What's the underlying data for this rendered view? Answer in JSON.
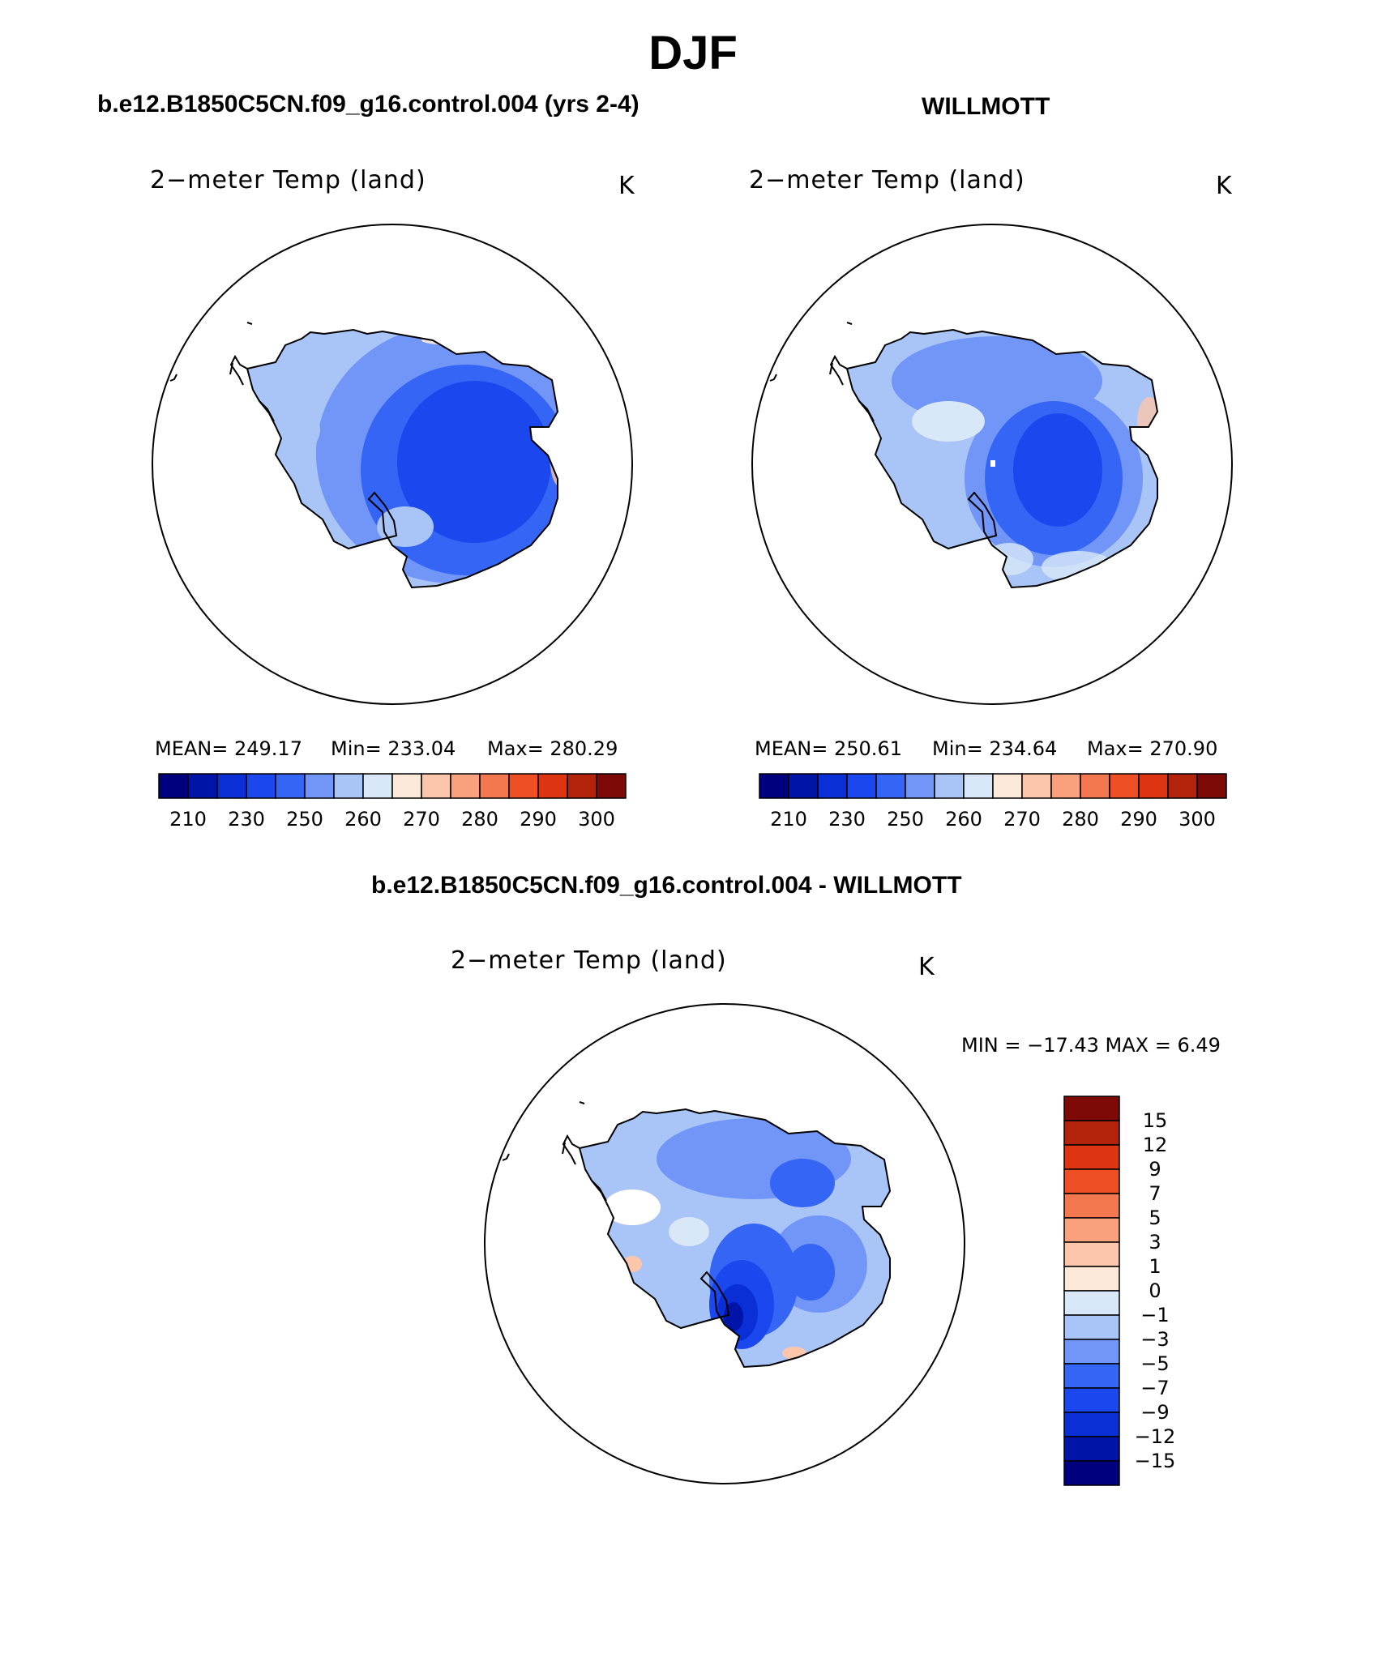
{
  "page_title": "DJF",
  "panels": [
    {
      "id": "model",
      "case_title": "b.e12.B1850C5CN.f09_g16.control.004 (yrs 2-4)",
      "variable_label": "2−meter Temp (land)",
      "units": "K",
      "stats": {
        "mean_label": "MEAN= 249.17",
        "min_label": "Min= 233.04",
        "max_label": "Max= 280.29"
      }
    },
    {
      "id": "obs",
      "case_title": "WILLMOTT",
      "variable_label": "2−meter Temp (land)",
      "units": "K",
      "stats": {
        "mean_label": "MEAN= 250.61",
        "min_label": "Min= 234.64",
        "max_label": "Max= 270.90"
      }
    },
    {
      "id": "diff",
      "case_title": "b.e12.B1850C5CN.f09_g16.control.004 - WILLMOTT",
      "variable_label": "2−meter Temp (land)",
      "units": "K",
      "stats": {
        "minmax_label": "MIN = −17.43 MAX =    6.49"
      }
    }
  ],
  "chart_data": [
    {
      "type": "heatmap",
      "title": "2-meter Temp (land)",
      "case": "b.e12.B1850C5CN.f09_g16.control.004 (yrs 2-4)",
      "season": "DJF",
      "projection": "south polar stereographic",
      "units": "K",
      "mean": 249.17,
      "min": 233.04,
      "max": 280.29,
      "colorbar": {
        "orientation": "horizontal",
        "tick_labels": [
          "210",
          "230",
          "250",
          "260",
          "270",
          "280",
          "290",
          "300"
        ],
        "colors": [
          "#00007e",
          "#0014a8",
          "#0a2fd6",
          "#1a48ee",
          "#3565f4",
          "#7196f7",
          "#a9c4f6",
          "#d8e8f8",
          "#fde9da",
          "#fcc6ad",
          "#f9a07c",
          "#f4784f",
          "#ef4f25",
          "#dd3512",
          "#b3220b",
          "#7d0a06"
        ]
      }
    },
    {
      "type": "heatmap",
      "title": "2-meter Temp (land)",
      "case": "WILLMOTT",
      "season": "DJF",
      "projection": "south polar stereographic",
      "units": "K",
      "mean": 250.61,
      "min": 234.64,
      "max": 270.9,
      "colorbar": {
        "orientation": "horizontal",
        "tick_labels": [
          "210",
          "230",
          "250",
          "260",
          "270",
          "280",
          "290",
          "300"
        ],
        "colors": [
          "#00007e",
          "#0014a8",
          "#0a2fd6",
          "#1a48ee",
          "#3565f4",
          "#7196f7",
          "#a9c4f6",
          "#d8e8f8",
          "#fde9da",
          "#fcc6ad",
          "#f9a07c",
          "#f4784f",
          "#ef4f25",
          "#dd3512",
          "#b3220b",
          "#7d0a06"
        ]
      }
    },
    {
      "type": "heatmap",
      "title": "2-meter Temp (land)",
      "case": "b.e12.B1850C5CN.f09_g16.control.004 - WILLMOTT",
      "season": "DJF",
      "projection": "south polar stereographic",
      "units": "K",
      "min": -17.43,
      "max": 6.49,
      "colorbar": {
        "orientation": "vertical",
        "tick_labels": [
          "15",
          "12",
          "9",
          "7",
          "5",
          "3",
          "1",
          "0",
          "−1",
          "−3",
          "−5",
          "−7",
          "−9",
          "−12",
          "−15"
        ],
        "colors": [
          "#7d0a06",
          "#b3220b",
          "#dd3512",
          "#ef4f25",
          "#f4784f",
          "#f9a07c",
          "#fcc6ad",
          "#fde9da",
          "#d8e8f8",
          "#a9c4f6",
          "#7196f7",
          "#3565f4",
          "#1a48ee",
          "#0a2fd6",
          "#0014a8",
          "#00007e"
        ]
      }
    }
  ]
}
